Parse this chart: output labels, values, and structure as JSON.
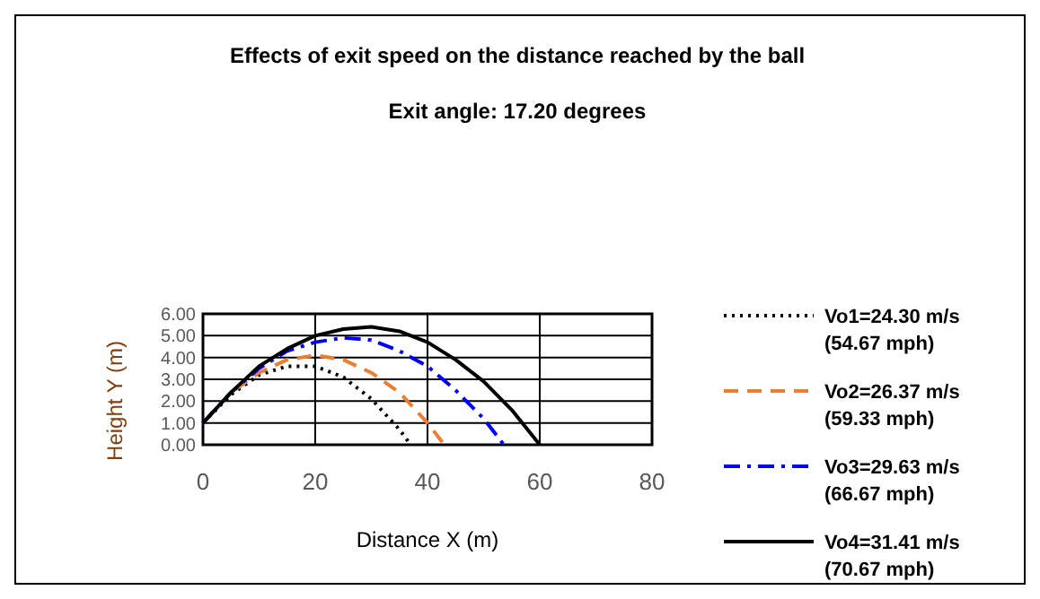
{
  "chart_data": {
    "type": "line",
    "title": "Effects of exit speed on the distance reached by the ball",
    "subtitle": "Exit angle: 17.20 degrees",
    "xlabel": "Distance X (m)",
    "ylabel": "Height Y (m)",
    "xlim": [
      0,
      80
    ],
    "xticks": [
      0,
      20,
      40,
      60,
      80
    ],
    "ylim": [
      0,
      6
    ],
    "yticks": [
      {
        "value": 0,
        "label": "0.00"
      },
      {
        "value": 1,
        "label": "1.00"
      },
      {
        "value": 2,
        "label": "2.00"
      },
      {
        "value": 3,
        "label": "3.00"
      },
      {
        "value": 4,
        "label": "4.00"
      },
      {
        "value": 5,
        "label": "5.00"
      },
      {
        "value": 6,
        "label": "6.00"
      }
    ],
    "grid": true,
    "legend": "right",
    "marker": "none",
    "series": [
      {
        "name": "Vo1=24.30 m/s (54.67 mph)",
        "color": "#000000",
        "line_style": "dotted",
        "x": [
          0,
          5,
          10,
          15,
          20,
          25,
          30,
          35,
          37
        ],
        "values": [
          1,
          2.3,
          3.2,
          3.6,
          3.6,
          3.1,
          2.1,
          0.7,
          0
        ]
      },
      {
        "name": "Vo2=26.37 m/s (59.33 mph)",
        "color": "#ed7d31",
        "line_style": "dashed",
        "x": [
          0,
          5,
          10,
          15,
          20,
          25,
          30,
          35,
          40,
          43
        ],
        "values": [
          1,
          2.4,
          3.3,
          3.9,
          4.1,
          3.9,
          3.3,
          2.4,
          1,
          0
        ]
      },
      {
        "name": "Vo3=29.63 m/s (66.67 mph)",
        "color": "#0000ff",
        "line_style": "dashdot",
        "x": [
          0,
          5,
          10,
          15,
          20,
          25,
          30,
          35,
          40,
          45,
          50,
          53.6
        ],
        "values": [
          1,
          2.4,
          3.5,
          4.3,
          4.7,
          4.9,
          4.8,
          4.3,
          3.6,
          2.5,
          1.2,
          0
        ]
      },
      {
        "name": "Vo4=31.41 m/s (70.67 mph)",
        "color": "#000000",
        "line_style": "solid",
        "x": [
          0,
          5,
          10,
          15,
          20,
          25,
          30,
          35,
          40,
          45,
          50,
          55,
          60
        ],
        "values": [
          1,
          2.4,
          3.6,
          4.4,
          5,
          5.3,
          5.4,
          5.2,
          4.7,
          3.9,
          2.9,
          1.6,
          0
        ]
      }
    ]
  }
}
